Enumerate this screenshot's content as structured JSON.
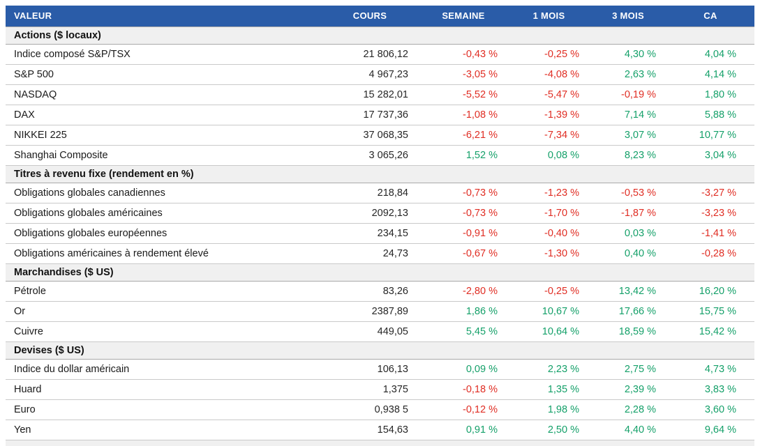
{
  "colors": {
    "header_bg": "#2A5CA8",
    "positive": "#14A069",
    "negative": "#E02D23",
    "section_bg": "#F0F0F0"
  },
  "table": {
    "columns": [
      "VALEUR",
      "COURS",
      "SEMAINE",
      "1 MOIS",
      "3 MOIS",
      "CA"
    ],
    "sections": [
      {
        "title": "Actions ($ locaux)",
        "rows": [
          {
            "label": "Indice composé S&P/TSX",
            "cours": "21 806,12",
            "changes": [
              "-0,43 %",
              "-0,25 %",
              "4,30 %",
              "4,04 %"
            ]
          },
          {
            "label": "S&P 500",
            "cours": "4 967,23",
            "changes": [
              "-3,05 %",
              "-4,08 %",
              "2,63 %",
              "4,14 %"
            ]
          },
          {
            "label": "NASDAQ",
            "cours": "15 282,01",
            "changes": [
              "-5,52 %",
              "-5,47 %",
              "-0,19 %",
              "1,80 %"
            ]
          },
          {
            "label": "DAX",
            "cours": "17 737,36",
            "changes": [
              "-1,08 %",
              "-1,39 %",
              "7,14 %",
              "5,88 %"
            ]
          },
          {
            "label": "NIKKEI 225",
            "cours": "37 068,35",
            "changes": [
              "-6,21 %",
              "-7,34 %",
              "3,07 %",
              "10,77 %"
            ]
          },
          {
            "label": "Shanghai Composite",
            "cours": "3 065,26",
            "changes": [
              "1,52 %",
              "0,08 %",
              "8,23 %",
              "3,04 %"
            ]
          }
        ]
      },
      {
        "title": "Titres à revenu fixe (rendement en %)",
        "rows": [
          {
            "label": "Obligations globales canadiennes",
            "cours": "218,84",
            "changes": [
              "-0,73 %",
              "-1,23 %",
              "-0,53 %",
              "-3,27 %"
            ]
          },
          {
            "label": "Obligations globales américaines",
            "cours": "2092,13",
            "changes": [
              "-0,73 %",
              "-1,70 %",
              "-1,87 %",
              "-3,23 %"
            ]
          },
          {
            "label": "Obligations globales européennes",
            "cours": "234,15",
            "changes": [
              "-0,91 %",
              "-0,40 %",
              "0,03 %",
              "-1,41 %"
            ]
          },
          {
            "label": "Obligations américaines à rendement élevé",
            "cours": "24,73",
            "changes": [
              "-0,67 %",
              "-1,30 %",
              "0,40 %",
              "-0,28 %"
            ]
          }
        ]
      },
      {
        "title": "Marchandises ($ US)",
        "rows": [
          {
            "label": "Pétrole",
            "cours": "83,26",
            "changes": [
              "-2,80 %",
              "-0,25 %",
              "13,42 %",
              "16,20 %"
            ]
          },
          {
            "label": "Or",
            "cours": "2387,89",
            "changes": [
              "1,86 %",
              "10,67 %",
              "17,66 %",
              "15,75 %"
            ]
          },
          {
            "label": "Cuivre",
            "cours": "449,05",
            "changes": [
              "5,45 %",
              "10,64 %",
              "18,59 %",
              "15,42 %"
            ]
          }
        ]
      },
      {
        "title": "Devises ($ US)",
        "rows": [
          {
            "label": "Indice du dollar américain",
            "cours": "106,13",
            "changes": [
              "0,09 %",
              "2,23 %",
              "2,75 %",
              "4,73 %"
            ]
          },
          {
            "label": "Huard",
            "cours": "1,375",
            "changes": [
              "-0,18 %",
              "1,35 %",
              "2,39 %",
              "3,83 %"
            ]
          },
          {
            "label": "Euro",
            "cours": "0,938 5",
            "changes": [
              "-0,12 %",
              "1,98 %",
              "2,28 %",
              "3,60 %"
            ]
          },
          {
            "label": "Yen",
            "cours": "154,63",
            "changes": [
              "0,91 %",
              "2,50 %",
              "4,40 %",
              "9,64 %"
            ]
          }
        ]
      }
    ]
  }
}
